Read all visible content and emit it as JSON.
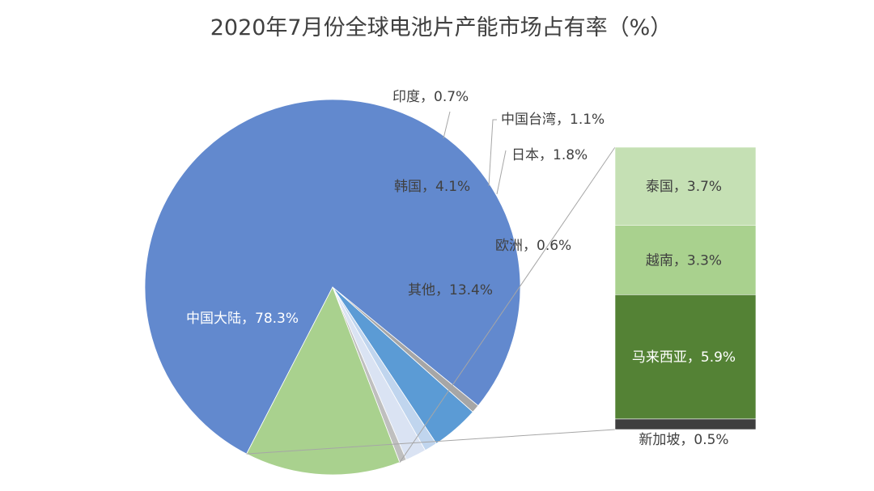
{
  "chart_data": {
    "type": "pie",
    "title": "2020年7月份全球电池片产能市场占有率（%）",
    "unit": "%",
    "pie": {
      "slices": [
        {
          "name": "中国大陆",
          "value": 78.3,
          "label": "中国大陆，78.3%",
          "color": "#6289ce"
        },
        {
          "name": "印度",
          "value": 0.7,
          "label": "印度，0.7%",
          "color": "#a6a6a6"
        },
        {
          "name": "韩国",
          "value": 4.1,
          "label": "韩国，4.1%",
          "color": "#5b9bd5"
        },
        {
          "name": "中国台湾",
          "value": 1.1,
          "label": "中国台湾，1.1%",
          "color": "#c0d5ee"
        },
        {
          "name": "日本",
          "value": 1.8,
          "label": "日本，1.8%",
          "color": "#dae3f3"
        },
        {
          "name": "欧洲",
          "value": 0.6,
          "label": "欧洲，0.6%",
          "color": "#bfbfbf"
        },
        {
          "name": "其他",
          "value": 13.4,
          "label": "其他，13.4%",
          "color": "#a9d18e"
        }
      ]
    },
    "breakout": {
      "of": "其他",
      "segments": [
        {
          "name": "泰国",
          "value": 3.7,
          "label": "泰国，3.7%",
          "color": "#c5e0b4"
        },
        {
          "name": "越南",
          "value": 3.3,
          "label": "越南，3.3%",
          "color": "#a9d18e"
        },
        {
          "name": "马来西亚",
          "value": 5.9,
          "label": "马来西亚，5.9%",
          "color": "#548235"
        },
        {
          "name": "新加坡",
          "value": 0.5,
          "label": "新加坡，0.5%",
          "color": "#3f3f3f"
        }
      ]
    }
  }
}
